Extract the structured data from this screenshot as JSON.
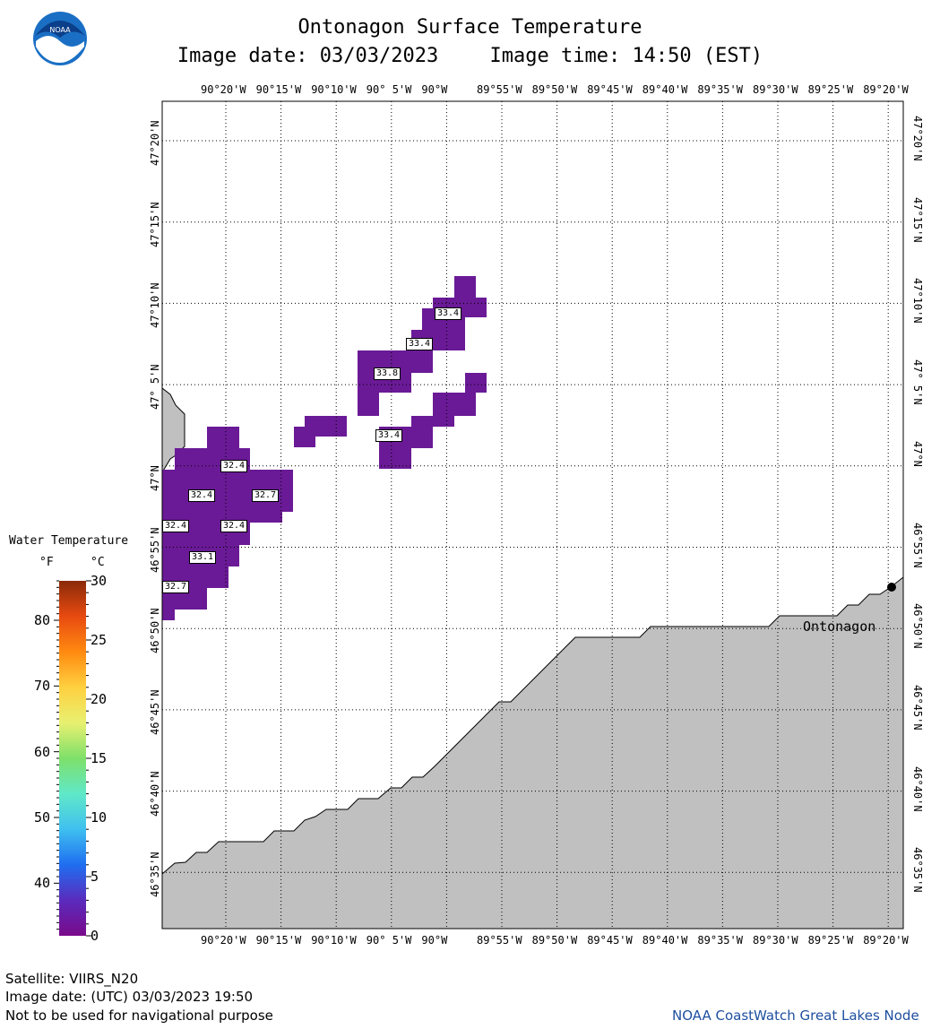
{
  "header": {
    "title": "Ontonagon Surface Temperature",
    "image_date_label": "Image date: 03/03/2023",
    "image_time_label": "Image time: 14:50 (EST)",
    "logo_text": "NOAA"
  },
  "map": {
    "lon_labels": [
      "90°20'W",
      "90°15'W",
      "90°10'W",
      "90° 5'W",
      "90°W",
      "89°55'W",
      "89°50'W",
      "89°45'W",
      "89°40'W",
      "89°35'W",
      "89°30'W",
      "89°25'W",
      "89°20'W"
    ],
    "lat_labels": [
      "47°20'N",
      "47°15'N",
      "47°10'N",
      "47° 5'N",
      "47°N",
      "46°55'N",
      "46°50'N",
      "46°45'N",
      "46°40'N",
      "46°35'N"
    ],
    "city": {
      "name": "Ontonagon"
    },
    "land_color": "#c0c0c0",
    "water_pixel_color": "#6a1a96",
    "temperature_labels": [
      "33.4",
      "33.4",
      "33.8",
      "33.4",
      "32.4",
      "32.4",
      "32.7",
      "32.4",
      "32.4",
      "33.1",
      "32.7"
    ]
  },
  "legend": {
    "title": "Water Temperature",
    "unit_f": "°F",
    "unit_c": "°C",
    "f_ticks": [
      "80",
      "70",
      "60",
      "50",
      "40"
    ],
    "c_ticks": [
      "30",
      "25",
      "20",
      "15",
      "10",
      "5",
      "0"
    ],
    "colors": [
      "#7a0a8a",
      "#5a2bbd",
      "#1f6ef0",
      "#3fc0f0",
      "#60e8c8",
      "#7ee06a",
      "#e8f070",
      "#ffd040",
      "#ff8a10",
      "#e84a10",
      "#8a2a0a"
    ]
  },
  "footer": {
    "satellite": "Satellite: VIIRS_N20",
    "utc_date": "Image date: (UTC) 03/03/2023  19:50",
    "disclaimer": "Not to be used for navigational purpose",
    "credit": "NOAA CoastWatch Great Lakes Node"
  }
}
